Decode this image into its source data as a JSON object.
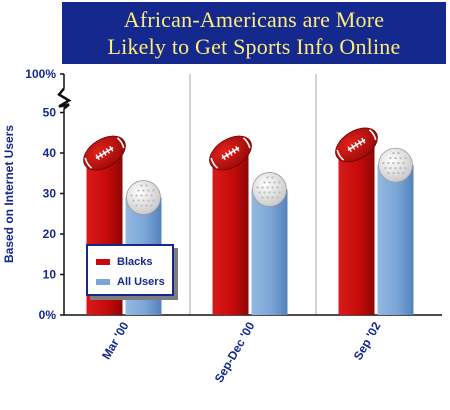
{
  "chart_data": {
    "type": "bar",
    "title_lines": [
      "African-Americans are More",
      "Likely to Get Sports Info Online"
    ],
    "ylabel": "Based on Internet Users",
    "xlabel": "",
    "categories": [
      "Mar '00",
      "Sep-Dec '00",
      "Sep '02"
    ],
    "series": [
      {
        "name": "Blacks",
        "values": [
          40,
          40,
          42
        ],
        "color": "#c80a0a",
        "marker": "football-icon"
      },
      {
        "name": "All Users",
        "values": [
          29,
          31,
          37
        ],
        "color": "#7aa5d6",
        "marker": "golf-ball-icon"
      }
    ],
    "y_ticks": [
      {
        "value": 0,
        "label": "0%"
      },
      {
        "value": 10,
        "label": "10"
      },
      {
        "value": 20,
        "label": "20"
      },
      {
        "value": 30,
        "label": "30"
      },
      {
        "value": 40,
        "label": "40"
      },
      {
        "value": 50,
        "label": "50"
      },
      {
        "value": 100,
        "label": "100%"
      }
    ],
    "ylim": [
      0,
      100
    ],
    "axis_break": [
      50,
      100
    ],
    "grid": false,
    "legend_position": "bottom-left"
  }
}
